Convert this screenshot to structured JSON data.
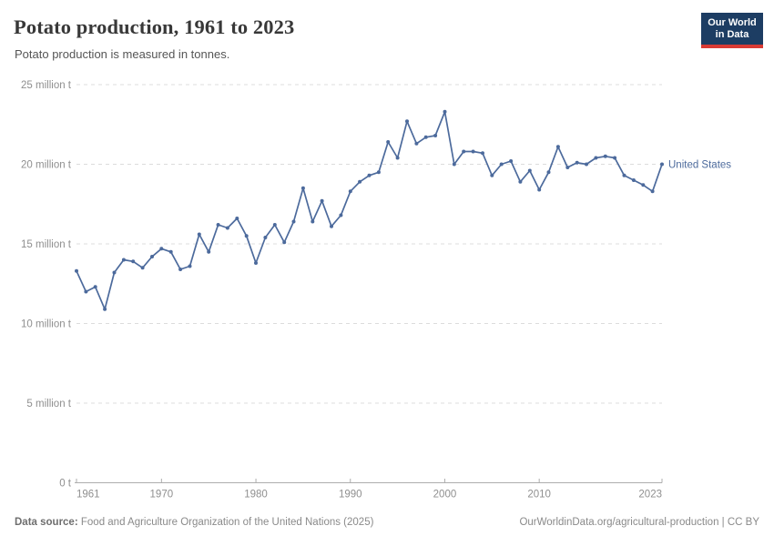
{
  "header": {
    "title": "Potato production, 1961 to 2023",
    "subtitle": "Potato production is measured in tonnes."
  },
  "logo": {
    "line1": "Our World",
    "line2": "in Data",
    "bg_color": "#1d3d63",
    "accent_color": "#d93a34",
    "text_color": "#ffffff"
  },
  "chart_data": {
    "type": "line",
    "title": "Potato production, 1961 to 2023",
    "unit": "tonnes",
    "xlabel": "",
    "ylabel": "",
    "x_range": [
      1961,
      2023
    ],
    "x_step": 1,
    "ylim_million_t": [
      0,
      25
    ],
    "grid": "horizontal dashed",
    "legend_position": "end-of-line label",
    "marker": "circle",
    "y_ticks": [
      {
        "value": 0,
        "label": "0 t"
      },
      {
        "value": 5,
        "label": "5 million t"
      },
      {
        "value": 10,
        "label": "10 million t"
      },
      {
        "value": 15,
        "label": "15 million t"
      },
      {
        "value": 20,
        "label": "20 million t"
      },
      {
        "value": 25,
        "label": "25 million t"
      }
    ],
    "x_ticks": [
      {
        "year": 1961,
        "label": "1961"
      },
      {
        "year": 1970,
        "label": "1970"
      },
      {
        "year": 1980,
        "label": "1980"
      },
      {
        "year": 1990,
        "label": "1990"
      },
      {
        "year": 2000,
        "label": "2000"
      },
      {
        "year": 2010,
        "label": "2010"
      },
      {
        "year": 2023,
        "label": "2023"
      }
    ],
    "series": [
      {
        "name": "United States",
        "color": "#4c6a9c",
        "start_year": 1961,
        "end_year": 2023,
        "values_million_t": [
          13.3,
          12.0,
          12.3,
          10.9,
          13.2,
          14.0,
          13.9,
          13.5,
          14.2,
          14.7,
          14.5,
          13.4,
          13.6,
          15.6,
          14.5,
          16.2,
          16.0,
          16.6,
          15.5,
          13.8,
          15.4,
          16.2,
          15.1,
          16.4,
          18.5,
          16.4,
          17.7,
          16.1,
          16.8,
          18.3,
          18.9,
          19.3,
          19.5,
          21.4,
          20.4,
          22.7,
          21.3,
          21.7,
          21.8,
          23.3,
          20.0,
          20.8,
          20.8,
          20.7,
          19.3,
          20.0,
          20.2,
          18.9,
          19.6,
          18.4,
          19.5,
          21.1,
          19.8,
          20.1,
          20.0,
          20.4,
          20.5,
          20.4,
          19.3,
          19.0,
          18.7,
          18.3,
          20.0
        ]
      }
    ],
    "style": {
      "grid_color": "#dcdcdc",
      "axis_color": "#adadad",
      "axis_text_color": "#8f8f8f",
      "line_width": 1.7,
      "marker_radius": 2
    }
  },
  "footer": {
    "datasource_label": "Data source:",
    "datasource": "Food and Agriculture Organization of the United Nations (2025)",
    "attribution": "OurWorldinData.org/agricultural-production | CC BY"
  }
}
